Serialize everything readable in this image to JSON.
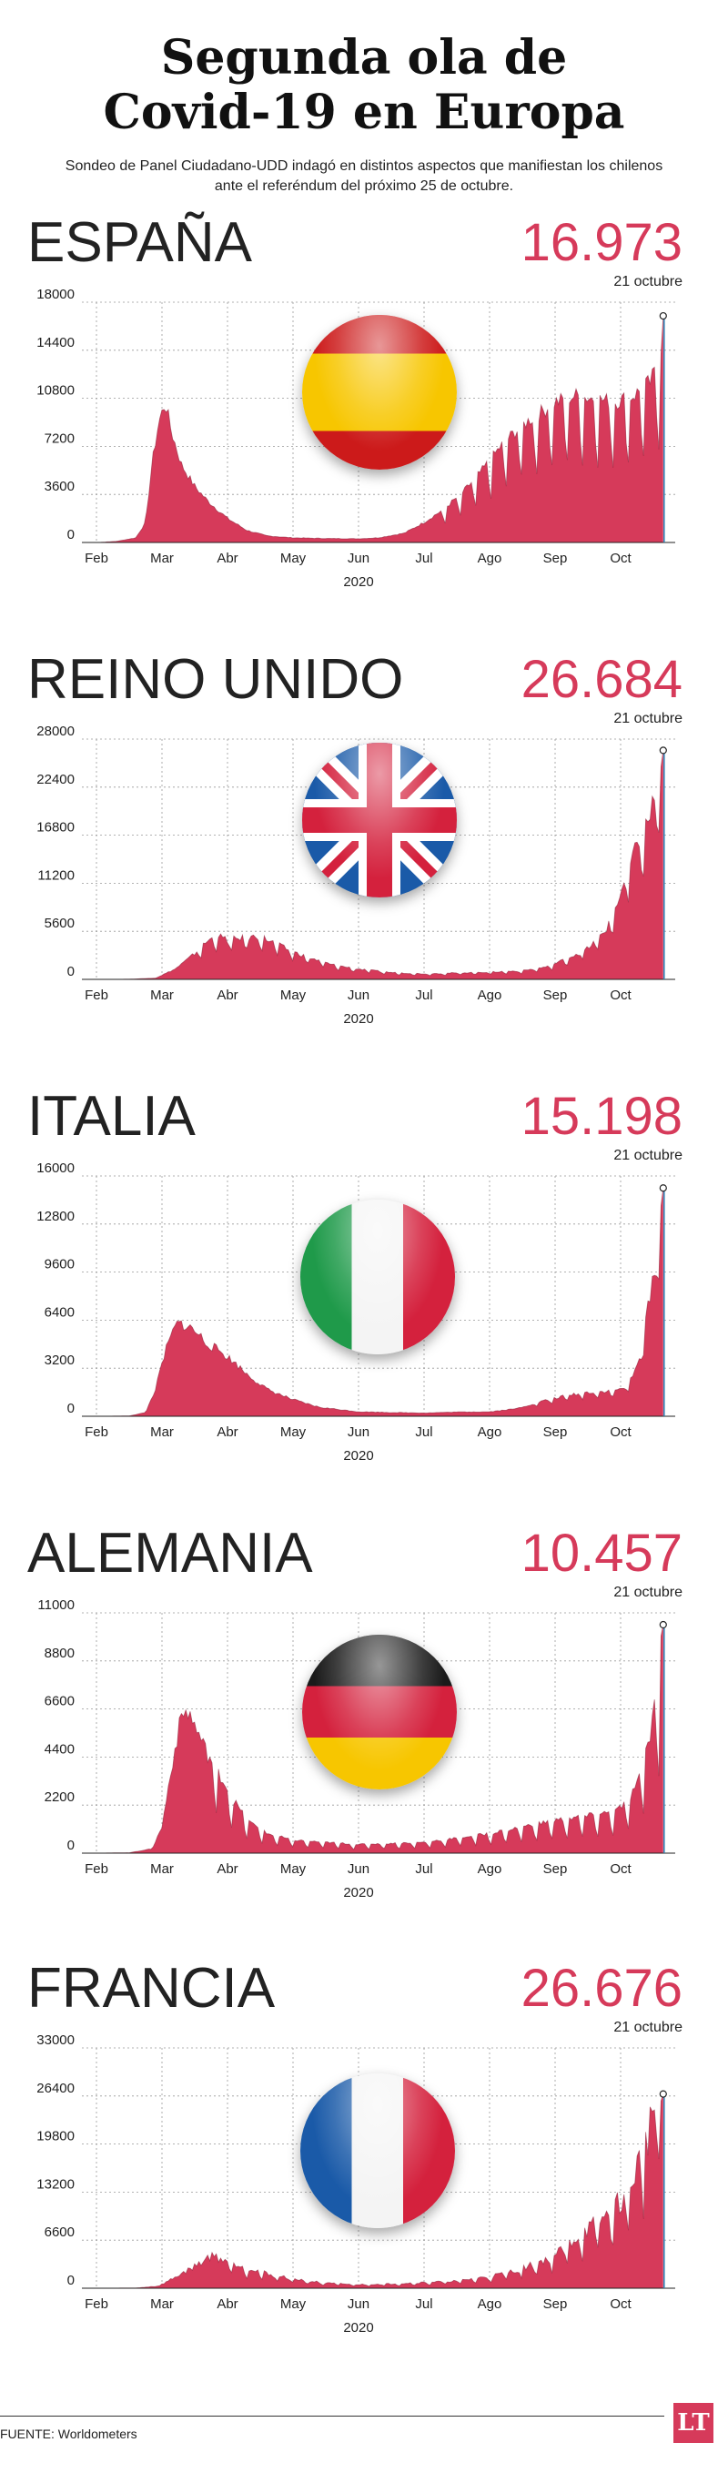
{
  "header": {
    "title_line1": "Segunda ola de",
    "title_line2": "Covid-19 en Europa",
    "subtitle": "Sondeo de Panel Ciudadano-UDD indagó en distintos aspectos que manifiestan los chilenos ante el referéndum del próximo 25 de octubre."
  },
  "colors": {
    "area": "#d63a5a",
    "area_dark": "#8c1d35",
    "accent": "#d63a5a",
    "grid": "#999999"
  },
  "footer": {
    "source": "FUENTE: Worldometers",
    "logo": "LT"
  },
  "chart_data": [
    {
      "type": "area",
      "title": "ESPAÑA",
      "highlight_value": "16.973",
      "highlight_date": "21 octubre",
      "xlabel": "2020",
      "x_ticks": [
        "Feb",
        "Mar",
        "Abr",
        "May",
        "Jun",
        "Jul",
        "Ago",
        "Sep",
        "Oct"
      ],
      "y_ticks": [
        "0",
        "3600",
        "7200",
        "10800",
        "14400",
        "18000"
      ],
      "ylim": [
        0,
        18000
      ],
      "grid": true,
      "flag": "spain-flag-icon",
      "series": [
        {
          "keypoints": [
            [
              0,
              0
            ],
            [
              0.3,
              80
            ],
            [
              0.6,
              350
            ],
            [
              0.75,
              1500
            ],
            [
              0.85,
              6000
            ],
            [
              0.95,
              9000
            ],
            [
              1.05,
              10500
            ],
            [
              1.15,
              8200
            ],
            [
              1.3,
              5800
            ],
            [
              1.5,
              4200
            ],
            [
              1.7,
              3100
            ],
            [
              2.0,
              1800
            ],
            [
              2.3,
              900
            ],
            [
              2.6,
              500
            ],
            [
              3.0,
              350
            ],
            [
              3.5,
              300
            ],
            [
              4.0,
              280
            ],
            [
              4.3,
              350
            ],
            [
              4.7,
              700
            ],
            [
              5.0,
              1500
            ],
            [
              5.3,
              2500
            ],
            [
              5.6,
              3800
            ],
            [
              5.9,
              5500
            ],
            [
              6.2,
              7400
            ],
            [
              6.5,
              8800
            ],
            [
              6.8,
              9800
            ],
            [
              7.0,
              10500
            ],
            [
              7.3,
              11000
            ],
            [
              7.6,
              10800
            ],
            [
              7.9,
              10500
            ],
            [
              8.2,
              11000
            ],
            [
              8.45,
              12000
            ],
            [
              8.6,
              13500
            ],
            [
              8.65,
              16973
            ]
          ],
          "weekly_dip": 0.45,
          "dip_start": 5.1,
          "noise": 0.06
        }
      ]
    },
    {
      "type": "area",
      "title": "REINO UNIDO",
      "highlight_value": "26.684",
      "highlight_date": "21 octubre",
      "xlabel": "2020",
      "x_ticks": [
        "Feb",
        "Mar",
        "Abr",
        "May",
        "Jun",
        "Jul",
        "Ago",
        "Sep",
        "Oct"
      ],
      "y_ticks": [
        "0",
        "5600",
        "11200",
        "16800",
        "22400",
        "28000"
      ],
      "ylim": [
        0,
        28000
      ],
      "grid": true,
      "flag": "uk-flag-icon",
      "series": [
        {
          "keypoints": [
            [
              0,
              0
            ],
            [
              0.5,
              20
            ],
            [
              0.9,
              150
            ],
            [
              1.2,
              1200
            ],
            [
              1.5,
              3000
            ],
            [
              1.7,
              4500
            ],
            [
              1.85,
              5100
            ],
            [
              2.0,
              4600
            ],
            [
              2.3,
              4900
            ],
            [
              2.5,
              5000
            ],
            [
              2.7,
              4300
            ],
            [
              3.0,
              3200
            ],
            [
              3.3,
              2400
            ],
            [
              3.6,
              1700
            ],
            [
              4.0,
              1200
            ],
            [
              4.5,
              800
            ],
            [
              5.0,
              650
            ],
            [
              5.5,
              750
            ],
            [
              6.0,
              850
            ],
            [
              6.5,
              1000
            ],
            [
              6.9,
              1500
            ],
            [
              7.2,
              2500
            ],
            [
              7.5,
              3600
            ],
            [
              7.8,
              6000
            ],
            [
              8.0,
              10000
            ],
            [
              8.2,
              14500
            ],
            [
              8.4,
              18000
            ],
            [
              8.55,
              22000
            ],
            [
              8.65,
              26684
            ]
          ],
          "weekly_dip": 0.3,
          "dip_start": 1.5,
          "noise": 0.08
        }
      ]
    },
    {
      "type": "area",
      "title": "ITALIA",
      "highlight_value": "15.198",
      "highlight_date": "21 octubre",
      "xlabel": "2020",
      "x_ticks": [
        "Feb",
        "Mar",
        "Abr",
        "May",
        "Jun",
        "Jul",
        "Ago",
        "Sep",
        "Oct"
      ],
      "y_ticks": [
        "0",
        "3200",
        "6400",
        "9600",
        "12800",
        "16000"
      ],
      "ylim": [
        0,
        16000
      ],
      "grid": true,
      "flag": "italy-flag-icon",
      "series": [
        {
          "keypoints": [
            [
              0,
              0
            ],
            [
              0.5,
              20
            ],
            [
              0.75,
              250
            ],
            [
              0.9,
              1800
            ],
            [
              1.05,
              4300
            ],
            [
              1.2,
              6000
            ],
            [
              1.3,
              6200
            ],
            [
              1.5,
              5700
            ],
            [
              1.7,
              4800
            ],
            [
              1.9,
              4300
            ],
            [
              2.1,
              3600
            ],
            [
              2.3,
              2800
            ],
            [
              2.6,
              1800
            ],
            [
              3.0,
              1100
            ],
            [
              3.4,
              600
            ],
            [
              4.0,
              300
            ],
            [
              4.5,
              250
            ],
            [
              5.0,
              220
            ],
            [
              5.5,
              280
            ],
            [
              6.0,
              300
            ],
            [
              6.4,
              500
            ],
            [
              6.8,
              1000
            ],
            [
              7.2,
              1400
            ],
            [
              7.5,
              1600
            ],
            [
              7.9,
              1700
            ],
            [
              8.1,
              2000
            ],
            [
              8.25,
              3300
            ],
            [
              8.35,
              5500
            ],
            [
              8.45,
              8000
            ],
            [
              8.55,
              11000
            ],
            [
              8.65,
              15198
            ]
          ],
          "weekly_dip": 0.25,
          "dip_start": 6.5,
          "noise": 0.07
        }
      ]
    },
    {
      "type": "area",
      "title": "ALEMANIA",
      "highlight_value": "10.457",
      "highlight_date": "21 octubre",
      "xlabel": "2020",
      "x_ticks": [
        "Feb",
        "Mar",
        "Abr",
        "May",
        "Jun",
        "Jul",
        "Ago",
        "Sep",
        "Oct"
      ],
      "y_ticks": [
        "0",
        "2200",
        "4400",
        "6600",
        "8800",
        "11000"
      ],
      "ylim": [
        0,
        11000
      ],
      "grid": true,
      "flag": "germany-flag-icon",
      "series": [
        {
          "keypoints": [
            [
              0,
              0
            ],
            [
              0.5,
              20
            ],
            [
              0.85,
              200
            ],
            [
              1.0,
              1200
            ],
            [
              1.15,
              4000
            ],
            [
              1.3,
              6300
            ],
            [
              1.4,
              6500
            ],
            [
              1.55,
              5500
            ],
            [
              1.7,
              4500
            ],
            [
              1.9,
              3500
            ],
            [
              2.1,
              2400
            ],
            [
              2.3,
              1500
            ],
            [
              2.6,
              900
            ],
            [
              3.0,
              600
            ],
            [
              3.5,
              500
            ],
            [
              4.0,
              400
            ],
            [
              4.5,
              450
            ],
            [
              5.0,
              500
            ],
            [
              5.5,
              700
            ],
            [
              6.0,
              900
            ],
            [
              6.5,
              1200
            ],
            [
              7.0,
              1500
            ],
            [
              7.5,
              1700
            ],
            [
              7.9,
              1900
            ],
            [
              8.1,
              2300
            ],
            [
              8.3,
              3500
            ],
            [
              8.45,
              5500
            ],
            [
              8.55,
              7500
            ],
            [
              8.65,
              10457
            ]
          ],
          "weekly_dip": 0.55,
          "dip_start": 1.6,
          "noise": 0.08
        }
      ]
    },
    {
      "type": "area",
      "title": "FRANCIA",
      "highlight_value": "26.676",
      "highlight_date": "21 octubre",
      "xlabel": "2020",
      "x_ticks": [
        "Feb",
        "Mar",
        "Abr",
        "May",
        "Jun",
        "Jul",
        "Ago",
        "Sep",
        "Oct"
      ],
      "y_ticks": [
        "0",
        "6600",
        "13200",
        "19800",
        "26400",
        "33000"
      ],
      "ylim": [
        0,
        33000
      ],
      "grid": true,
      "flag": "france-flag-icon",
      "series": [
        {
          "keypoints": [
            [
              0,
              0
            ],
            [
              0.6,
              30
            ],
            [
              0.95,
              300
            ],
            [
              1.2,
              1500
            ],
            [
              1.5,
              3000
            ],
            [
              1.75,
              4500
            ],
            [
              2.0,
              3800
            ],
            [
              2.3,
              2800
            ],
            [
              2.6,
              2000
            ],
            [
              3.0,
              1300
            ],
            [
              3.5,
              700
            ],
            [
              4.0,
              500
            ],
            [
              4.5,
              600
            ],
            [
              5.0,
              800
            ],
            [
              5.5,
              1000
            ],
            [
              6.0,
              1600
            ],
            [
              6.5,
              2700
            ],
            [
              7.0,
              4500
            ],
            [
              7.4,
              7500
            ],
            [
              7.8,
              10000
            ],
            [
              8.1,
              13000
            ],
            [
              8.3,
              18000
            ],
            [
              8.45,
              22000
            ],
            [
              8.55,
              28000
            ],
            [
              8.6,
              32000
            ],
            [
              8.65,
              26676
            ]
          ],
          "weekly_dip": 0.45,
          "dip_start": 2.0,
          "noise": 0.15
        }
      ]
    }
  ]
}
